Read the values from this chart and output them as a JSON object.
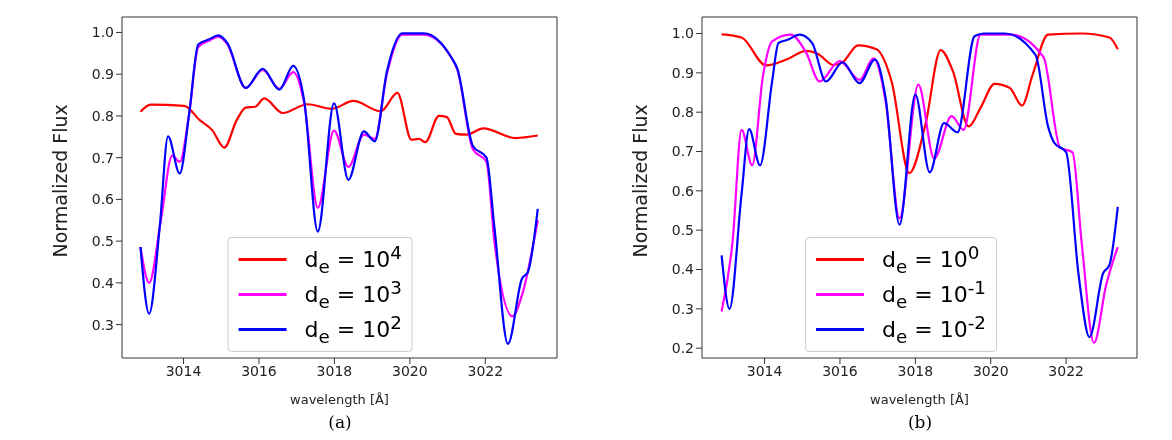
{
  "chart_data": [
    {
      "type": "line",
      "xlabel": "wavelength [Å]",
      "ylabel": "Normalized Flux",
      "xlim": [
        3012.37,
        3023.9
      ],
      "ylim": [
        0.22,
        1.037
      ],
      "xticks": [
        3014,
        3016,
        3018,
        3020,
        3022
      ],
      "yticks": [
        0.3,
        0.4,
        0.5,
        0.6,
        0.7,
        0.8,
        0.9,
        {
          "value": 1,
          "label": "1.0"
        }
      ],
      "grid": false,
      "legend": "bottom",
      "marker": "none",
      "line_style": "solid",
      "annotations": [
        "(a)"
      ],
      "series": [
        {
          "name": "d$_{e}$ = 10$^{4}$",
          "color": "#ff0000",
          "x": [
            3012.86,
            3013.13,
            3014.02,
            3014.43,
            3014.76,
            3015.08,
            3015.41,
            3015.65,
            3015.9,
            3016.14,
            3016.63,
            3017.28,
            3017.93,
            3018.5,
            3019.23,
            3019.67,
            3020.04,
            3020.24,
            3020.41,
            3020.77,
            3020.98,
            3021.22,
            3021.5,
            3021.95,
            3022.8,
            3023.39
          ],
          "values": [
            0.81,
            0.827,
            0.824,
            0.79,
            0.766,
            0.724,
            0.79,
            0.82,
            0.822,
            0.842,
            0.807,
            0.828,
            0.817,
            0.836,
            0.811,
            0.855,
            0.743,
            0.745,
            0.737,
            0.8,
            0.797,
            0.757,
            0.755,
            0.77,
            0.747,
            0.753
          ]
        },
        {
          "name": "d$_{e}$ = 10$^{3}$",
          "color": "#ff00ff",
          "x": [
            3012.86,
            3013.09,
            3013.4,
            3013.7,
            3013.9,
            3014.15,
            3014.39,
            3014.67,
            3014.92,
            3015.16,
            3015.65,
            3016.1,
            3016.54,
            3016.91,
            3017.2,
            3017.56,
            3017.99,
            3018.37,
            3018.78,
            3019.07,
            3019.39,
            3019.8,
            3020.37,
            3021.1,
            3021.26,
            3021.67,
            3022.03,
            3022.24,
            3022.72,
            3022.97,
            3023.39
          ],
          "values": [
            0.486,
            0.4,
            0.55,
            0.705,
            0.69,
            0.805,
            0.965,
            0.98,
            0.99,
            0.972,
            0.867,
            0.91,
            0.865,
            0.905,
            0.83,
            0.58,
            0.765,
            0.678,
            0.755,
            0.745,
            0.9,
            0.995,
            0.995,
            0.94,
            0.91,
            0.72,
            0.69,
            0.5,
            0.32,
            0.37,
            0.55
          ]
        },
        {
          "name": "d$_{e}$ = 10$^{2}$",
          "color": "#0000ff",
          "x": [
            3012.86,
            3013.09,
            3013.37,
            3013.59,
            3013.9,
            3014.15,
            3014.39,
            3014.67,
            3014.92,
            3015.16,
            3015.65,
            3016.1,
            3016.54,
            3016.91,
            3017.2,
            3017.56,
            3017.99,
            3018.37,
            3018.78,
            3019.07,
            3019.39,
            3019.8,
            3020.37,
            3021.1,
            3021.26,
            3021.67,
            3022.03,
            3022.24,
            3022.6,
            3022.97,
            3023.13,
            3023.39
          ],
          "values": [
            0.486,
            0.326,
            0.534,
            0.751,
            0.662,
            0.805,
            0.971,
            0.983,
            0.993,
            0.975,
            0.867,
            0.913,
            0.863,
            0.92,
            0.836,
            0.523,
            0.83,
            0.647,
            0.763,
            0.739,
            0.906,
            0.998,
            0.998,
            0.94,
            0.913,
            0.728,
            0.7,
            0.534,
            0.254,
            0.41,
            0.426,
            0.577
          ]
        }
      ]
    },
    {
      "type": "line",
      "xlabel": "wavelength [Å]",
      "ylabel": "Normalized Flux",
      "xlim": [
        3012.34,
        3023.88
      ],
      "ylim": [
        0.175,
        1.042
      ],
      "xticks": [
        3014,
        3016,
        3018,
        3020,
        3022
      ],
      "yticks": [
        0.2,
        0.3,
        0.4,
        0.5,
        0.6,
        0.7,
        0.8,
        0.9,
        {
          "value": 1,
          "label": "1.0"
        }
      ],
      "grid": false,
      "legend": "bottom",
      "marker": "none",
      "line_style": "solid",
      "annotations": [
        "(b)"
      ],
      "series": [
        {
          "name": "d$_{e}$ = 10$^{0}$",
          "color": "#ff0000",
          "x": [
            3012.86,
            3013.39,
            3014.04,
            3014.61,
            3015.1,
            3015.42,
            3015.83,
            3016.07,
            3016.48,
            3016.97,
            3017.37,
            3017.84,
            3018.27,
            3018.67,
            3019.0,
            3019.41,
            3019.74,
            3020.1,
            3020.5,
            3020.83,
            3021.11,
            3021.52,
            3022.41,
            3023.15,
            3023.37
          ],
          "values": [
            0.998,
            0.99,
            0.919,
            0.935,
            0.956,
            0.948,
            0.92,
            0.927,
            0.97,
            0.96,
            0.878,
            0.645,
            0.77,
            0.958,
            0.903,
            0.764,
            0.813,
            0.872,
            0.862,
            0.817,
            0.895,
            0.997,
            1.0,
            0.99,
            0.96
          ]
        },
        {
          "name": "d$_{e}$ = 10$^{-1}$",
          "color": "#ff00ff",
          "x": [
            3012.86,
            3013.15,
            3013.39,
            3013.67,
            3013.96,
            3014.2,
            3014.69,
            3015.1,
            3015.46,
            3015.99,
            3016.52,
            3016.89,
            3017.21,
            3017.58,
            3018.08,
            3018.5,
            3018.96,
            3019.28,
            3019.73,
            3020.54,
            3021.4,
            3021.84,
            3022.17,
            3022.41,
            3022.74,
            3023.06,
            3023.37
          ],
          "values": [
            0.293,
            0.47,
            0.755,
            0.665,
            0.894,
            0.98,
            0.997,
            0.952,
            0.878,
            0.93,
            0.882,
            0.937,
            0.829,
            0.53,
            0.87,
            0.682,
            0.79,
            0.755,
            0.997,
            0.997,
            0.94,
            0.71,
            0.698,
            0.47,
            0.214,
            0.36,
            0.457
          ]
        },
        {
          "name": "d$_{e}$ = 10$^{-2}$",
          "color": "#0000ff",
          "x": [
            3012.86,
            3013.07,
            3013.39,
            3013.59,
            3013.88,
            3014.2,
            3014.37,
            3014.61,
            3014.93,
            3015.26,
            3015.63,
            3016.07,
            3016.52,
            3016.93,
            3017.21,
            3017.58,
            3018.0,
            3018.38,
            3018.76,
            3019.12,
            3019.57,
            3019.81,
            3020.38,
            3021.19,
            3021.52,
            3021.68,
            3022.0,
            3022.33,
            3022.62,
            3022.98,
            3023.15,
            3023.37
          ],
          "values": [
            0.436,
            0.3,
            0.592,
            0.757,
            0.665,
            0.878,
            0.976,
            0.984,
            0.997,
            0.976,
            0.878,
            0.927,
            0.874,
            0.934,
            0.837,
            0.514,
            0.845,
            0.647,
            0.772,
            0.749,
            0.993,
            1.0,
            1.0,
            0.945,
            0.764,
            0.723,
            0.698,
            0.387,
            0.228,
            0.39,
            0.412,
            0.559
          ]
        }
      ]
    }
  ]
}
